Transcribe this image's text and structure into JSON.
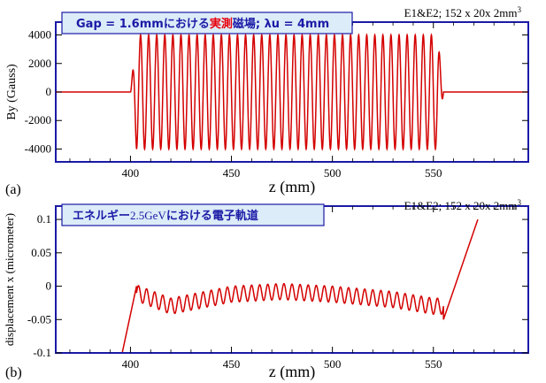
{
  "colors": {
    "trace": "#d40000",
    "frame": "#1a1aa6",
    "box_fill": "#dcecf8",
    "box_border": "#1a1aa6",
    "highlight": "#e8000b"
  },
  "chart_data": [
    {
      "type": "line",
      "panel_label": "(a)",
      "title_parts": [
        "Gap = 1.6mmにおける",
        "実測",
        "磁場; λu = 4mm"
      ],
      "corner_note": "E1&E2; 152 x 20x 2mm",
      "corner_sup": "3",
      "xlabel": "z (mm)",
      "ylabel": "By (Gauss)",
      "xlim": [
        363,
        597
      ],
      "ylim": [
        -4900,
        4900
      ],
      "x_ticks": [
        "400",
        "450",
        "500",
        "550"
      ],
      "y_ticks": [
        "4000",
        "2000",
        "0",
        "-2000",
        "-4000"
      ],
      "x_tick_values": [
        400,
        450,
        500,
        550
      ],
      "y_tick_values": [
        4000,
        2000,
        0,
        -2000,
        -4000
      ],
      "grid": false,
      "series": [
        {
          "segments": [
            {
              "form": "flat",
              "x": [
                363,
                400
              ],
              "y": 0
            },
            {
              "form": "oscillation",
              "x": [
                400,
                555
              ],
              "amplitude": 4000,
              "period_mm": 4,
              "end_taper": true
            },
            {
              "form": "flat",
              "x": [
                555,
                597
              ],
              "y": 0
            }
          ]
        }
      ]
    },
    {
      "type": "line",
      "panel_label": "(b)",
      "title_parts": [
        "エネルギー",
        "2.5GeV",
        "における電子軌道"
      ],
      "corner_note": "E1&E2; 152 x 20x 2mm",
      "corner_sup": "3",
      "xlabel": "z (mm)",
      "ylabel": "displacement x (micrometer)",
      "xlim": [
        363,
        597
      ],
      "ylim": [
        -0.1,
        0.12
      ],
      "x_ticks": [
        "400",
        "450",
        "500",
        "550"
      ],
      "y_ticks": [
        "0.1",
        "0.05",
        "0",
        "-0.05",
        "-0.1"
      ],
      "x_tick_values": [
        400,
        450,
        500,
        550
      ],
      "y_tick_values": [
        0.1,
        0.05,
        0,
        -0.05,
        -0.1
      ],
      "grid": false,
      "series": [
        {
          "segments": [
            {
              "form": "ramp",
              "x": [
                396,
                403
              ],
              "y": [
                -0.1,
                0.0
              ]
            },
            {
              "form": "oscillation",
              "x": [
                403,
                555
              ],
              "center_points": [
                [
                  403,
                  -0.01
                ],
                [
                  420,
                  -0.03
                ],
                [
                  450,
                  -0.012
                ],
                [
                  475,
                  -0.008
                ],
                [
                  500,
                  -0.012
                ],
                [
                  530,
                  -0.02
                ],
                [
                  550,
                  -0.03
                ]
              ],
              "amplitude": 0.012,
              "period_mm": 4
            },
            {
              "form": "ramp",
              "x": [
                555,
                572
              ],
              "y": [
                -0.05,
                0.1
              ]
            }
          ]
        }
      ]
    }
  ]
}
